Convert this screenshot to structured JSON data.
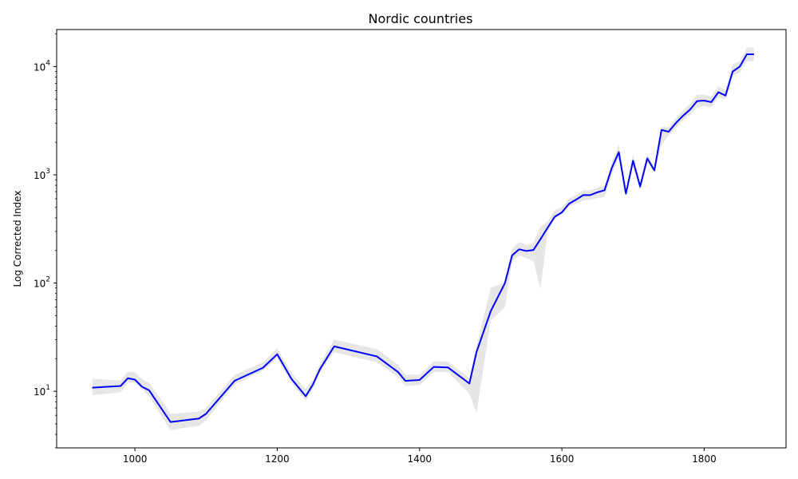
{
  "chart_data": {
    "type": "line",
    "title": "Nordic countries",
    "xlabel": "",
    "ylabel": "Log Corrected Index",
    "yscale": "log",
    "xlim": [
      890,
      1915
    ],
    "ylim": [
      3,
      22000
    ],
    "grid": false,
    "colors": {
      "line": "#0000ff",
      "band": "#d9d9d9"
    },
    "x_ticks": [
      1000,
      1200,
      1400,
      1600,
      1800
    ],
    "x_tick_labels": [
      "1000",
      "1200",
      "1400",
      "1600",
      "1800"
    ],
    "y_ticks": [
      10,
      100,
      1000,
      10000
    ],
    "y_tick_labels": [
      {
        "base": "10",
        "exp": "1"
      },
      {
        "base": "10",
        "exp": "2"
      },
      {
        "base": "10",
        "exp": "3"
      },
      {
        "base": "10",
        "exp": "4"
      }
    ],
    "series": [
      {
        "x": [
          940,
          980,
          990,
          1000,
          1010,
          1020,
          1040,
          1050,
          1090,
          1100,
          1140,
          1180,
          1200,
          1220,
          1240,
          1250,
          1260,
          1280,
          1340,
          1370,
          1380,
          1400,
          1420,
          1440,
          1470,
          1480,
          1500,
          1520,
          1530,
          1540,
          1550,
          1560,
          1570,
          1580,
          1590,
          1600,
          1610,
          1620,
          1630,
          1640,
          1650,
          1660,
          1670,
          1680,
          1690,
          1700,
          1710,
          1720,
          1730,
          1740,
          1750,
          1760,
          1770,
          1780,
          1790,
          1800,
          1810,
          1820,
          1830,
          1840,
          1850,
          1860,
          1870
        ],
        "values": [
          10.8,
          11.2,
          13.2,
          12.8,
          11.0,
          10.2,
          6.5,
          5.2,
          5.6,
          6.2,
          12.5,
          16.5,
          22.0,
          13.0,
          9.0,
          11.5,
          16.0,
          26.0,
          21.0,
          15.0,
          12.5,
          12.7,
          16.8,
          16.6,
          11.8,
          23.0,
          55.0,
          100.0,
          180.0,
          205.0,
          198.0,
          202.0,
          255.0,
          325.0,
          410.0,
          450.0,
          540.0,
          590.0,
          650.0,
          650.0,
          690.0,
          720.0,
          1150.0,
          1620.0,
          670.0,
          1350.0,
          780.0,
          1420.0,
          1100.0,
          2600.0,
          2500.0,
          3000.0,
          3500.0,
          4000.0,
          4800.0,
          4850.0,
          4700.0,
          5800.0,
          5400.0,
          9000.0,
          10000.0,
          13000.0,
          13000.0
        ],
        "lower": [
          9.2,
          9.8,
          12.0,
          12.0,
          10.4,
          9.0,
          5.5,
          4.4,
          4.8,
          5.4,
          11.5,
          15.5,
          20.0,
          12.0,
          8.2,
          10.5,
          15.0,
          23.0,
          18.5,
          13.5,
          11.2,
          11.4,
          15.0,
          15.0,
          9.5,
          6.3,
          45.0,
          60.0,
          160.0,
          180.0,
          170.0,
          160.0,
          88.0,
          300.0,
          390.0,
          430.0,
          510.0,
          540.0,
          580.0,
          590.0,
          610.0,
          620.0,
          1020.0,
          1400.0,
          660.0,
          1200.0,
          720.0,
          1300.0,
          1050.0,
          1900.0,
          2300.0,
          2700.0,
          3200.0,
          3600.0,
          4200.0,
          4300.0,
          4200.0,
          5200.0,
          5000.0,
          8200.0,
          8800.0,
          11200.0,
          11200.0
        ],
        "upper": [
          13.0,
          12.6,
          15.2,
          15.0,
          13.0,
          12.0,
          7.8,
          6.2,
          6.5,
          7.0,
          14.2,
          18.5,
          25.0,
          14.8,
          10.5,
          12.8,
          17.8,
          30.0,
          24.5,
          17.5,
          14.2,
          14.2,
          19.0,
          18.8,
          13.2,
          26.0,
          90.0,
          102.0,
          205.0,
          240.0,
          225.0,
          235.0,
          330.0,
          370.0,
          470.0,
          500.0,
          600.0,
          650.0,
          720.0,
          720.0,
          760.0,
          800.0,
          1300.0,
          1900.0,
          700.0,
          1550.0,
          850.0,
          1560.0,
          1150.0,
          2800.0,
          2750.0,
          3300.0,
          3900.0,
          4500.0,
          5500.0,
          5500.0,
          5300.0,
          6600.0,
          6000.0,
          10500.0,
          11200.0,
          15000.0,
          15000.0
        ]
      }
    ]
  }
}
